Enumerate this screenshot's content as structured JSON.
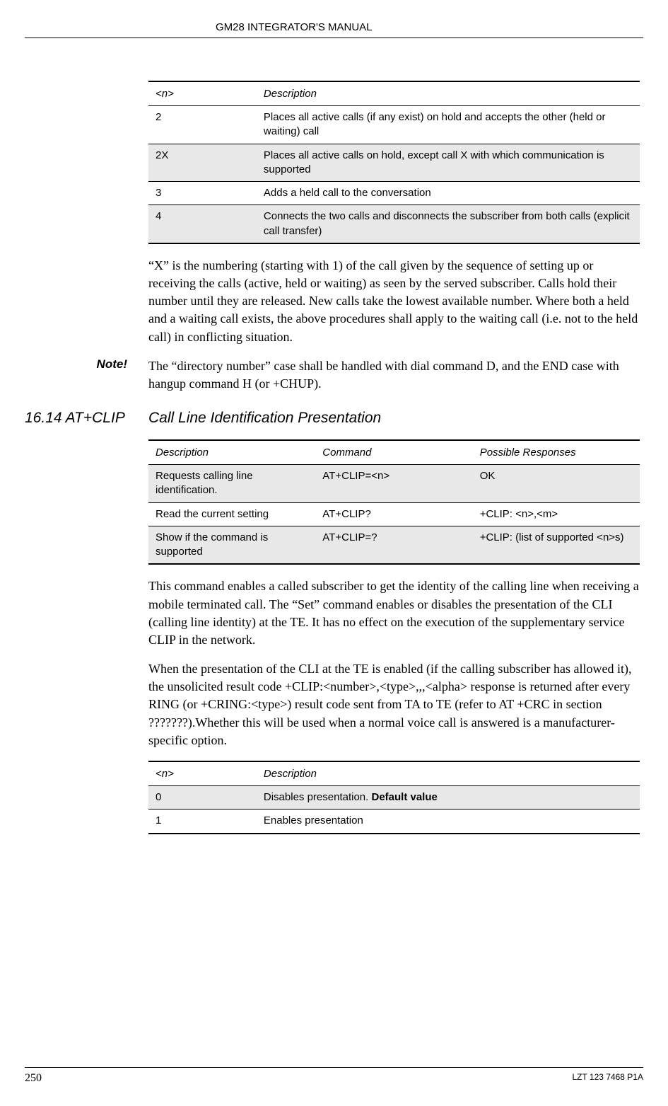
{
  "header": {
    "title": "GM28 INTEGRATOR'S MANUAL"
  },
  "table1": {
    "headers": [
      "<n>",
      "Description"
    ],
    "rows": [
      {
        "n": "2",
        "desc": "Places all active calls (if any exist) on hold and accepts the other (held or waiting) call",
        "shaded": false
      },
      {
        "n": "2X",
        "desc": "Places all active calls on hold, except call X with which communication is supported",
        "shaded": true
      },
      {
        "n": "3",
        "desc": "Adds a held call to the conversation",
        "shaded": false
      },
      {
        "n": "4",
        "desc": "Connects the two calls and disconnects the subscriber from both calls (explicit call transfer)",
        "shaded": true
      }
    ]
  },
  "para1": "“X” is the numbering (starting with 1) of the call given by the sequence of setting up or receiving the calls (active, held or waiting) as seen by the served subscriber. Calls hold their number until they are released. New calls take the lowest available number. Where both a held and a waiting call exists, the above procedures shall apply to the waiting call (i.e. not to the held call) in conflicting situation.",
  "note": {
    "label": "Note!",
    "text": "The “directory number” case shall be handled with dial command D, and the END case with hangup command H (or +CHUP)."
  },
  "section": {
    "number": "16.14 AT+CLIP",
    "title": "Call Line Identification Presentation"
  },
  "table2": {
    "headers": [
      "Description",
      "Command",
      "Possible Responses"
    ],
    "rows": [
      {
        "c0": "Requests calling line identification.",
        "c1": "AT+CLIP=<n>",
        "c2": "OK",
        "shaded": true
      },
      {
        "c0": "Read the current setting",
        "c1": "AT+CLIP?",
        "c2": "+CLIP: <n>,<m>",
        "shaded": false
      },
      {
        "c0": "Show if the command is supported",
        "c1": "AT+CLIP=?",
        "c2": "+CLIP: (list of supported <n>s)",
        "shaded": true
      }
    ]
  },
  "para2": "This command enables a called subscriber to get the identity of the calling line when receiving a mobile terminated call. The “Set” command enables or disables the presentation of the CLI (calling line identity) at the TE. It has no effect on the execution of the supplementary service CLIP in the network.",
  "para3": "When the presentation of the CLI at the TE is enabled (if the calling subscriber has allowed it), the unsolicited result code +CLIP:<number>,<type>,,,<alpha> response is returned after every RING (or +CRING:<type>) result code sent from TA to TE (refer to AT +CRC in section ???????).Whether this will be used when a normal voice call is answered is a manufacturer-specific option.",
  "table3": {
    "headers": [
      "<n>",
      "Description"
    ],
    "rows": [
      {
        "n": "0",
        "desc_prefix": "Disables presentation. ",
        "desc_bold": "Default value",
        "shaded": true
      },
      {
        "n": "1",
        "desc_prefix": "Enables presentation",
        "desc_bold": "",
        "shaded": false
      }
    ]
  },
  "footer": {
    "page": "250",
    "code": "LZT 123 7468 P1A"
  }
}
